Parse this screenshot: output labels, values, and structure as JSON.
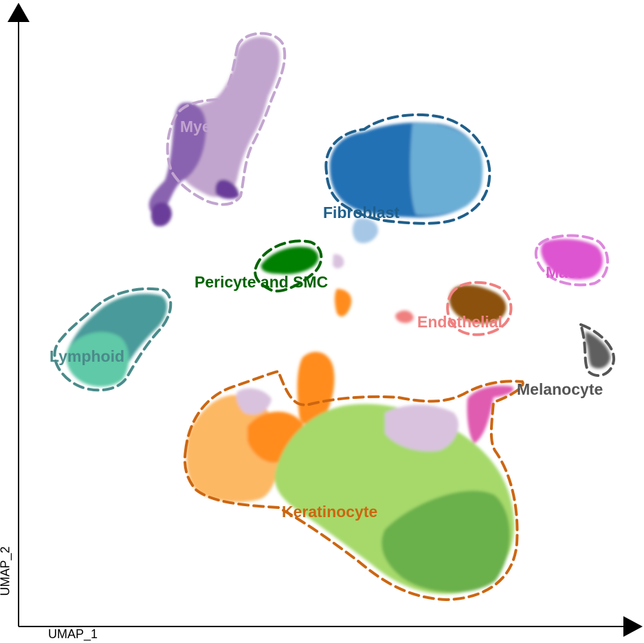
{
  "chart_data": {
    "type": "scatter",
    "xlabel": "UMAP_1",
    "ylabel": "UMAP_2",
    "grid": false,
    "legend": "none",
    "clusters": [
      {
        "name": "Myeloid",
        "color": "#c2a5cf",
        "x_range": [
          -8.5,
          -2.5
        ],
        "y_range": [
          11.0,
          19.0
        ]
      },
      {
        "name": "Fibroblast",
        "color": "#2171b5",
        "x_range": [
          4.0,
          13.0
        ],
        "y_range": [
          9.0,
          14.5
        ]
      },
      {
        "name": "Pericyte and SMC",
        "color": "#008000",
        "x_range": [
          1.0,
          3.5
        ],
        "y_range": [
          7.0,
          8.5
        ]
      },
      {
        "name": "Mast",
        "color": "#dd55d0",
        "x_range": [
          19.0,
          21.5
        ],
        "y_range": [
          7.5,
          9.0
        ]
      },
      {
        "name": "Endothelial",
        "color": "#f08080",
        "x_range": [
          11.0,
          16.0
        ],
        "y_range": [
          4.5,
          6.5
        ]
      },
      {
        "name": "Lymphoid",
        "color": "#4a9a9a",
        "x_range": [
          -14.0,
          -9.5
        ],
        "y_range": [
          2.0,
          6.5
        ]
      },
      {
        "name": "Melanocyte",
        "color": "#5f5f5f",
        "x_range": [
          20.5,
          21.5
        ],
        "y_range": [
          2.0,
          4.0
        ]
      },
      {
        "name": "Keratinocyte",
        "color": "#cc6611",
        "x_range": [
          -5.0,
          18.0
        ],
        "y_range": [
          -11.0,
          2.5
        ]
      }
    ]
  }
}
